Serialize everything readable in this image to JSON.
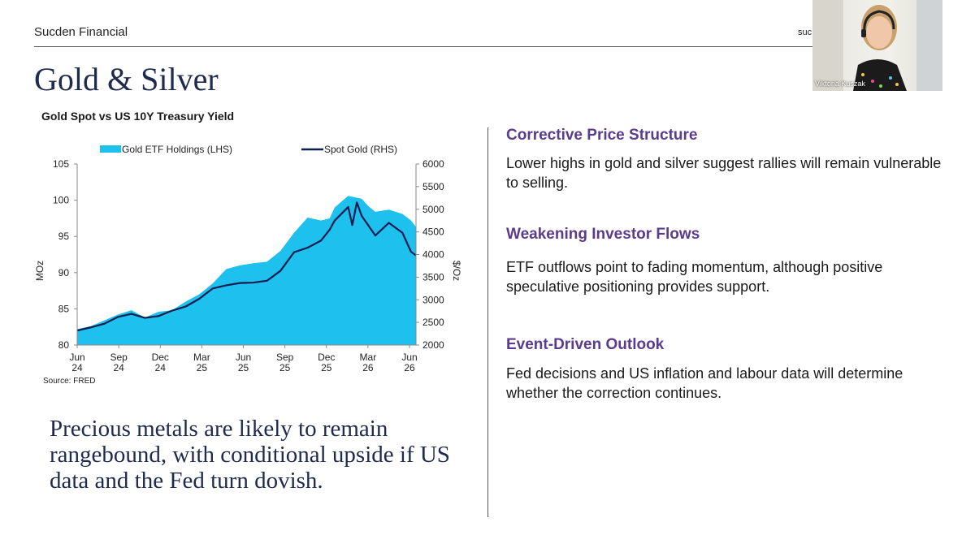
{
  "header": {
    "brand": "Sucden Financial",
    "brand_right": "suc"
  },
  "slide": {
    "title": "Gold & Silver"
  },
  "chart_title": "Gold Spot vs US 10Y Treasury Yield",
  "chart_data": {
    "type": "area",
    "legend": [
      "Gold ETF Holdings (LHS)",
      "Spot Gold (RHS)"
    ],
    "legend_position": "top",
    "y_left": {
      "label": "MOz",
      "range": [
        80,
        105
      ],
      "ticks": [
        80,
        85,
        90,
        95,
        100,
        105
      ]
    },
    "y_right": {
      "label": "$/Oz",
      "range": [
        2000,
        6000
      ],
      "ticks": [
        2000,
        2500,
        3000,
        3500,
        4000,
        4500,
        5000,
        5500,
        6000
      ]
    },
    "x_ticks": [
      "Jun\n24",
      "Sep\n24",
      "Dec\n24",
      "Mar\n25",
      "Jun\n25",
      "Sep\n25",
      "Dec\n25",
      "Mar\n26",
      "Jun\n26"
    ],
    "x_range": [
      "2024-06",
      "2026-07"
    ],
    "series": [
      {
        "name": "Gold ETF Holdings (LHS)",
        "type": "area",
        "color": "#1ec0ee",
        "x": [
          "2024-06",
          "2024-07",
          "2024-08",
          "2024-09",
          "2024-10",
          "2024-11",
          "2024-12",
          "2025-01",
          "2025-02",
          "2025-03",
          "2025-04",
          "2025-05",
          "2025-06",
          "2025-07",
          "2025-08",
          "2025-09",
          "2025-10",
          "2025-11",
          "2025-12",
          "2025-12-20",
          "2026-01",
          "2026-02",
          "2026-03",
          "2026-03-15",
          "2026-04",
          "2026-05",
          "2026-06",
          "2026-06-20",
          "2026-07"
        ],
        "values": [
          82.2,
          82.6,
          83.4,
          84.2,
          84.8,
          83.8,
          84.6,
          84.8,
          86.0,
          87.0,
          88.5,
          90.5,
          91.0,
          91.3,
          91.5,
          93.0,
          95.5,
          97.6,
          97.2,
          97.5,
          99.0,
          100.6,
          100.2,
          99.2,
          98.4,
          98.7,
          98.1,
          97.2,
          96.3
        ]
      },
      {
        "name": "Spot Gold (RHS)",
        "type": "line",
        "color": "#0e1d4f",
        "x": [
          "2024-06",
          "2024-07",
          "2024-08",
          "2024-09",
          "2024-10",
          "2024-11",
          "2024-12",
          "2025-01",
          "2025-02",
          "2025-03",
          "2025-04",
          "2025-05",
          "2025-06",
          "2025-07",
          "2025-08",
          "2025-09",
          "2025-10",
          "2025-11",
          "2025-12",
          "2025-12-20",
          "2026-01",
          "2026-02",
          "2026-02-10",
          "2026-02-20",
          "2026-03",
          "2026-03-15",
          "2026-04",
          "2026-05",
          "2026-06",
          "2026-06-20",
          "2026-07"
        ],
        "values": [
          2320,
          2390,
          2470,
          2620,
          2690,
          2600,
          2640,
          2760,
          2850,
          3020,
          3250,
          3320,
          3370,
          3380,
          3420,
          3640,
          4050,
          4150,
          4310,
          4550,
          4750,
          5050,
          4650,
          5150,
          4850,
          4650,
          4420,
          4700,
          4480,
          4060,
          3980
        ]
      }
    ],
    "source": "Source: FRED"
  },
  "conclusion": "Precious metals are likely to remain rangebound, with conditional upside if US data and the Fed turn dovish.",
  "points": [
    {
      "heading": "Corrective Price Structure",
      "body": "Lower highs in gold and silver suggest rallies will remain vulnerable to selling."
    },
    {
      "heading": "Weakening Investor Flows",
      "body": "ETF outflows point to fading momentum, although positive speculative positioning provides support."
    },
    {
      "heading": "Event-Driven Outlook",
      "body": "Fed decisions and US inflation and labour data will determine whether the correction continues."
    }
  ],
  "webcam": {
    "name": "Viktoria Kuszak"
  }
}
